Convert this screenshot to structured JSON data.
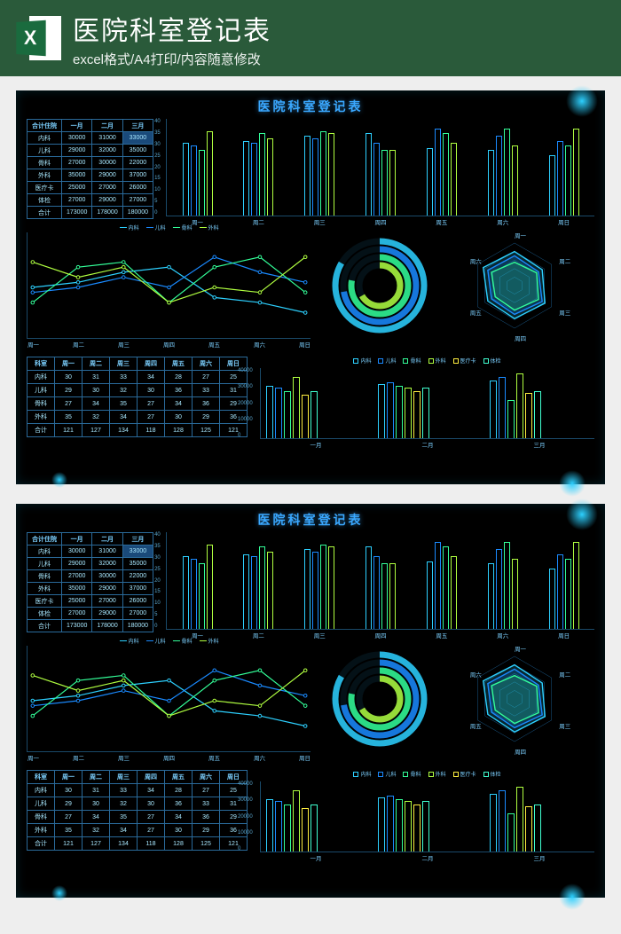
{
  "header": {
    "title": "医院科室登记表",
    "subtitle": "excel格式/A4打印/内容随意修改",
    "icon_letter": "X",
    "icon_name": "excel-icon"
  },
  "dashboard_title": "医院科室登记表",
  "colors": {
    "accent": "#3aa8ff",
    "border": "#2a6a9a",
    "text": "#a8e8ff",
    "bg": "#000000",
    "series": [
      "#2dd0ff",
      "#1a8aff",
      "#33ff99",
      "#b0ff40",
      "#ffee40",
      "#40ffd0"
    ]
  },
  "table1": {
    "header": [
      "合计住院",
      "一月",
      "二月",
      "三月"
    ],
    "rows": [
      [
        "内科",
        "30000",
        "31000",
        "33000"
      ],
      [
        "儿科",
        "29000",
        "32000",
        "35000"
      ],
      [
        "骨科",
        "27000",
        "30000",
        "22000"
      ],
      [
        "外科",
        "35000",
        "29000",
        "37000"
      ],
      [
        "医疗卡",
        "25000",
        "27000",
        "26000"
      ],
      [
        "体检",
        "27000",
        "29000",
        "27000"
      ],
      [
        "合计",
        "173000",
        "178000",
        "180000"
      ]
    ],
    "highlight": {
      "row": 0,
      "col": 3
    }
  },
  "bar_chart": {
    "ylim": [
      0,
      40
    ],
    "ytick_step": 5,
    "categories": [
      "周一",
      "周二",
      "周三",
      "周四",
      "周五",
      "周六",
      "周日"
    ],
    "series_colors": [
      "#2dd0ff",
      "#1a8aff",
      "#33ff99",
      "#b0ff40"
    ],
    "data": [
      [
        30,
        29,
        27,
        35
      ],
      [
        31,
        30,
        34,
        32
      ],
      [
        33,
        32,
        35,
        34
      ],
      [
        34,
        30,
        27,
        27
      ],
      [
        28,
        36,
        34,
        30
      ],
      [
        27,
        33,
        36,
        29
      ],
      [
        25,
        31,
        29,
        36
      ]
    ]
  },
  "line_chart": {
    "legend": [
      "内科",
      "儿科",
      "骨科",
      "外科"
    ],
    "legend_colors": [
      "#2dd0ff",
      "#1a8aff",
      "#33ff99",
      "#b0ff40"
    ],
    "categories": [
      "周一",
      "周二",
      "周三",
      "周四",
      "周五",
      "周六",
      "周日"
    ],
    "ylim": [
      20,
      40
    ],
    "series": [
      [
        30,
        31,
        33,
        34,
        28,
        27,
        25
      ],
      [
        29,
        30,
        32,
        30,
        36,
        33,
        31
      ],
      [
        27,
        34,
        35,
        27,
        34,
        36,
        29
      ],
      [
        35,
        32,
        34,
        27,
        30,
        29,
        36
      ]
    ],
    "point_labels": {
      "left": [
        "32",
        "29",
        "28"
      ],
      "right": [
        "31",
        "26"
      ]
    }
  },
  "donut": {
    "rings": [
      {
        "color": "#2dd0ff",
        "start": 0,
        "end": 300
      },
      {
        "color": "#1a8aff",
        "start": 0,
        "end": 260
      },
      {
        "color": "#33ff99",
        "start": 0,
        "end": 280
      },
      {
        "color": "#b0ff40",
        "start": 0,
        "end": 240
      }
    ]
  },
  "radar": {
    "axes": [
      "周一",
      "周二",
      "周三",
      "周四",
      "周五",
      "周六"
    ],
    "rings": 5,
    "series_colors": [
      "#2dd0ff",
      "#1a8aff",
      "#33ff99"
    ],
    "data": [
      [
        32,
        30,
        33,
        31,
        29,
        34
      ],
      [
        28,
        26,
        30,
        27,
        25,
        29
      ],
      [
        22,
        24,
        26,
        23,
        21,
        25
      ]
    ],
    "max": 40
  },
  "table2": {
    "header": [
      "科室",
      "周一",
      "周二",
      "周三",
      "周四",
      "周五",
      "周六",
      "周日"
    ],
    "rows": [
      [
        "内科",
        "30",
        "31",
        "33",
        "34",
        "28",
        "27",
        "25"
      ],
      [
        "儿科",
        "29",
        "30",
        "32",
        "30",
        "36",
        "33",
        "31"
      ],
      [
        "骨科",
        "27",
        "34",
        "35",
        "27",
        "34",
        "36",
        "29"
      ],
      [
        "外科",
        "35",
        "32",
        "34",
        "27",
        "30",
        "29",
        "36"
      ],
      [
        "合计",
        "121",
        "127",
        "134",
        "118",
        "128",
        "125",
        "121"
      ]
    ]
  },
  "bar2": {
    "legend": [
      "内科",
      "儿科",
      "骨科",
      "外科",
      "医疗卡",
      "体检"
    ],
    "legend_colors": [
      "#2dd0ff",
      "#1a8aff",
      "#33ff99",
      "#b0ff40",
      "#ffee40",
      "#40ffd0"
    ],
    "categories": [
      "一月",
      "二月",
      "三月"
    ],
    "ylim": [
      0,
      40000
    ],
    "ytick_step": 10000,
    "data": [
      [
        30000,
        29000,
        27000,
        35000,
        25000,
        27000
      ],
      [
        31000,
        32000,
        30000,
        29000,
        27000,
        29000
      ],
      [
        33000,
        35000,
        22000,
        37000,
        26000,
        27000
      ]
    ]
  }
}
